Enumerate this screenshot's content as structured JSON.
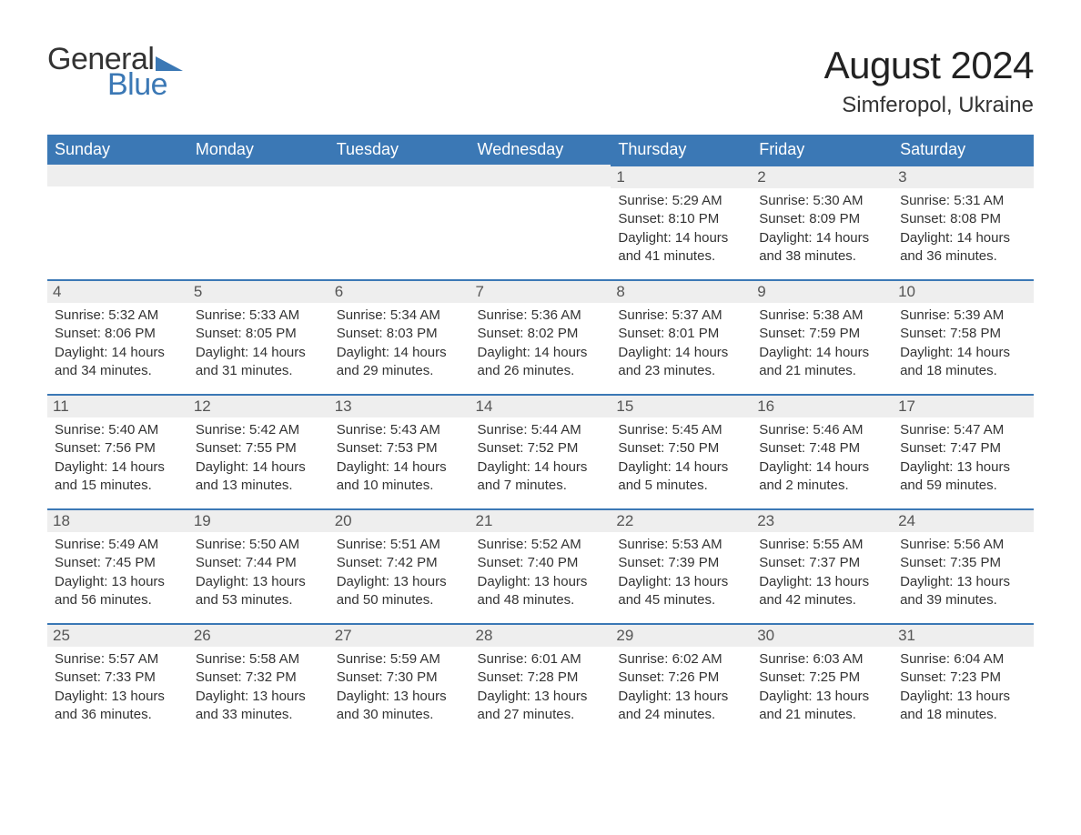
{
  "logo": {
    "text1": "General",
    "text2": "Blue",
    "tri_color": "#3b78b5"
  },
  "title": "August 2024",
  "location": "Simferopol, Ukraine",
  "colors": {
    "header_bg": "#3b78b5",
    "header_text": "#ffffff",
    "daynum_bg": "#eeeeee",
    "daynum_border": "#3b78b5",
    "body_text": "#333333",
    "page_bg": "#ffffff"
  },
  "day_headers": [
    "Sunday",
    "Monday",
    "Tuesday",
    "Wednesday",
    "Thursday",
    "Friday",
    "Saturday"
  ],
  "weeks": [
    [
      null,
      null,
      null,
      null,
      {
        "n": "1",
        "sunrise": "Sunrise: 5:29 AM",
        "sunset": "Sunset: 8:10 PM",
        "daylight": "Daylight: 14 hours and 41 minutes."
      },
      {
        "n": "2",
        "sunrise": "Sunrise: 5:30 AM",
        "sunset": "Sunset: 8:09 PM",
        "daylight": "Daylight: 14 hours and 38 minutes."
      },
      {
        "n": "3",
        "sunrise": "Sunrise: 5:31 AM",
        "sunset": "Sunset: 8:08 PM",
        "daylight": "Daylight: 14 hours and 36 minutes."
      }
    ],
    [
      {
        "n": "4",
        "sunrise": "Sunrise: 5:32 AM",
        "sunset": "Sunset: 8:06 PM",
        "daylight": "Daylight: 14 hours and 34 minutes."
      },
      {
        "n": "5",
        "sunrise": "Sunrise: 5:33 AM",
        "sunset": "Sunset: 8:05 PM",
        "daylight": "Daylight: 14 hours and 31 minutes."
      },
      {
        "n": "6",
        "sunrise": "Sunrise: 5:34 AM",
        "sunset": "Sunset: 8:03 PM",
        "daylight": "Daylight: 14 hours and 29 minutes."
      },
      {
        "n": "7",
        "sunrise": "Sunrise: 5:36 AM",
        "sunset": "Sunset: 8:02 PM",
        "daylight": "Daylight: 14 hours and 26 minutes."
      },
      {
        "n": "8",
        "sunrise": "Sunrise: 5:37 AM",
        "sunset": "Sunset: 8:01 PM",
        "daylight": "Daylight: 14 hours and 23 minutes."
      },
      {
        "n": "9",
        "sunrise": "Sunrise: 5:38 AM",
        "sunset": "Sunset: 7:59 PM",
        "daylight": "Daylight: 14 hours and 21 minutes."
      },
      {
        "n": "10",
        "sunrise": "Sunrise: 5:39 AM",
        "sunset": "Sunset: 7:58 PM",
        "daylight": "Daylight: 14 hours and 18 minutes."
      }
    ],
    [
      {
        "n": "11",
        "sunrise": "Sunrise: 5:40 AM",
        "sunset": "Sunset: 7:56 PM",
        "daylight": "Daylight: 14 hours and 15 minutes."
      },
      {
        "n": "12",
        "sunrise": "Sunrise: 5:42 AM",
        "sunset": "Sunset: 7:55 PM",
        "daylight": "Daylight: 14 hours and 13 minutes."
      },
      {
        "n": "13",
        "sunrise": "Sunrise: 5:43 AM",
        "sunset": "Sunset: 7:53 PM",
        "daylight": "Daylight: 14 hours and 10 minutes."
      },
      {
        "n": "14",
        "sunrise": "Sunrise: 5:44 AM",
        "sunset": "Sunset: 7:52 PM",
        "daylight": "Daylight: 14 hours and 7 minutes."
      },
      {
        "n": "15",
        "sunrise": "Sunrise: 5:45 AM",
        "sunset": "Sunset: 7:50 PM",
        "daylight": "Daylight: 14 hours and 5 minutes."
      },
      {
        "n": "16",
        "sunrise": "Sunrise: 5:46 AM",
        "sunset": "Sunset: 7:48 PM",
        "daylight": "Daylight: 14 hours and 2 minutes."
      },
      {
        "n": "17",
        "sunrise": "Sunrise: 5:47 AM",
        "sunset": "Sunset: 7:47 PM",
        "daylight": "Daylight: 13 hours and 59 minutes."
      }
    ],
    [
      {
        "n": "18",
        "sunrise": "Sunrise: 5:49 AM",
        "sunset": "Sunset: 7:45 PM",
        "daylight": "Daylight: 13 hours and 56 minutes."
      },
      {
        "n": "19",
        "sunrise": "Sunrise: 5:50 AM",
        "sunset": "Sunset: 7:44 PM",
        "daylight": "Daylight: 13 hours and 53 minutes."
      },
      {
        "n": "20",
        "sunrise": "Sunrise: 5:51 AM",
        "sunset": "Sunset: 7:42 PM",
        "daylight": "Daylight: 13 hours and 50 minutes."
      },
      {
        "n": "21",
        "sunrise": "Sunrise: 5:52 AM",
        "sunset": "Sunset: 7:40 PM",
        "daylight": "Daylight: 13 hours and 48 minutes."
      },
      {
        "n": "22",
        "sunrise": "Sunrise: 5:53 AM",
        "sunset": "Sunset: 7:39 PM",
        "daylight": "Daylight: 13 hours and 45 minutes."
      },
      {
        "n": "23",
        "sunrise": "Sunrise: 5:55 AM",
        "sunset": "Sunset: 7:37 PM",
        "daylight": "Daylight: 13 hours and 42 minutes."
      },
      {
        "n": "24",
        "sunrise": "Sunrise: 5:56 AM",
        "sunset": "Sunset: 7:35 PM",
        "daylight": "Daylight: 13 hours and 39 minutes."
      }
    ],
    [
      {
        "n": "25",
        "sunrise": "Sunrise: 5:57 AM",
        "sunset": "Sunset: 7:33 PM",
        "daylight": "Daylight: 13 hours and 36 minutes."
      },
      {
        "n": "26",
        "sunrise": "Sunrise: 5:58 AM",
        "sunset": "Sunset: 7:32 PM",
        "daylight": "Daylight: 13 hours and 33 minutes."
      },
      {
        "n": "27",
        "sunrise": "Sunrise: 5:59 AM",
        "sunset": "Sunset: 7:30 PM",
        "daylight": "Daylight: 13 hours and 30 minutes."
      },
      {
        "n": "28",
        "sunrise": "Sunrise: 6:01 AM",
        "sunset": "Sunset: 7:28 PM",
        "daylight": "Daylight: 13 hours and 27 minutes."
      },
      {
        "n": "29",
        "sunrise": "Sunrise: 6:02 AM",
        "sunset": "Sunset: 7:26 PM",
        "daylight": "Daylight: 13 hours and 24 minutes."
      },
      {
        "n": "30",
        "sunrise": "Sunrise: 6:03 AM",
        "sunset": "Sunset: 7:25 PM",
        "daylight": "Daylight: 13 hours and 21 minutes."
      },
      {
        "n": "31",
        "sunrise": "Sunrise: 6:04 AM",
        "sunset": "Sunset: 7:23 PM",
        "daylight": "Daylight: 13 hours and 18 minutes."
      }
    ]
  ]
}
